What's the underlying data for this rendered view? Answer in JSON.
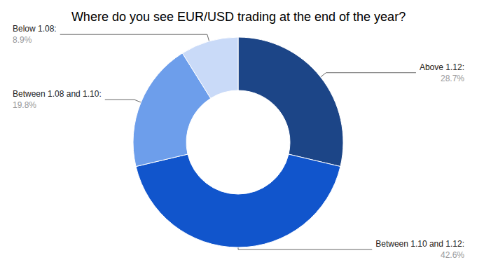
{
  "chart_data": {
    "type": "pie",
    "title": "Where do you see EUR/USD trading at the end of the year?",
    "categories": [
      "Above 1.12:",
      "Between 1.10 and 1.12:",
      "Between 1.08 and 1.10:",
      "Below 1.08:"
    ],
    "values": [
      28.7,
      42.6,
      19.8,
      8.9
    ],
    "value_labels": [
      "28.7%",
      "42.6%",
      "19.8%",
      "8.9%"
    ],
    "colors": [
      "#1c4587",
      "#1155cc",
      "#6d9eeb",
      "#c9daf8"
    ],
    "data_labels": true
  }
}
